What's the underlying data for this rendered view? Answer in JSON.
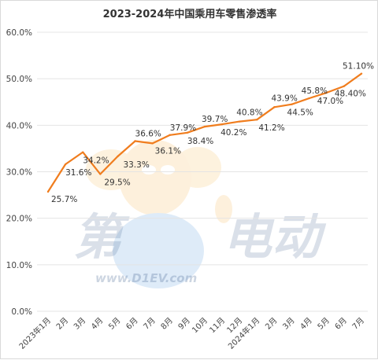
{
  "chart_data": {
    "type": "line",
    "title": "2023-2024年中国乘用车零售渗透率",
    "xlabel": "",
    "ylabel": "",
    "categories": [
      "2023年1月",
      "2月",
      "3月",
      "4月",
      "5月",
      "6月",
      "7月",
      "8月",
      "9月",
      "10月",
      "11月",
      "12月",
      "2024年1月",
      "2月",
      "3月",
      "4月",
      "5月",
      "6月",
      "7月"
    ],
    "series": [
      {
        "values": [
          25.7,
          31.6,
          34.2,
          29.5,
          33.3,
          36.6,
          36.1,
          37.9,
          38.4,
          39.7,
          40.2,
          40.8,
          41.2,
          43.9,
          44.5,
          45.8,
          47.0,
          48.4,
          51.1
        ],
        "labels": [
          "25.7%",
          "31.6%",
          "34.2%",
          "29.5%",
          "33.3%",
          "36.6%",
          "36.1%",
          "37.9%",
          "38.4%",
          "39.7%",
          "40.2%",
          "40.8%",
          "41.2%",
          "43.9%",
          "44.5%",
          "45.8%",
          "47.0%",
          "48.40%",
          "51.10%"
        ],
        "color": "#f07d1e"
      }
    ],
    "ylim": [
      0,
      60
    ],
    "yticks": [
      "0.0%",
      "10.0%",
      "20.0%",
      "30.0%",
      "40.0%",
      "50.0%",
      "60.0%"
    ],
    "grid": true,
    "legend": "none"
  },
  "watermark": {
    "left_text": "第",
    "right_text": "电动",
    "url": "www.D1EV.com"
  },
  "colors": {
    "line": "#f07d1e",
    "grid": "#e4e4e4",
    "axis_text": "#444444"
  }
}
